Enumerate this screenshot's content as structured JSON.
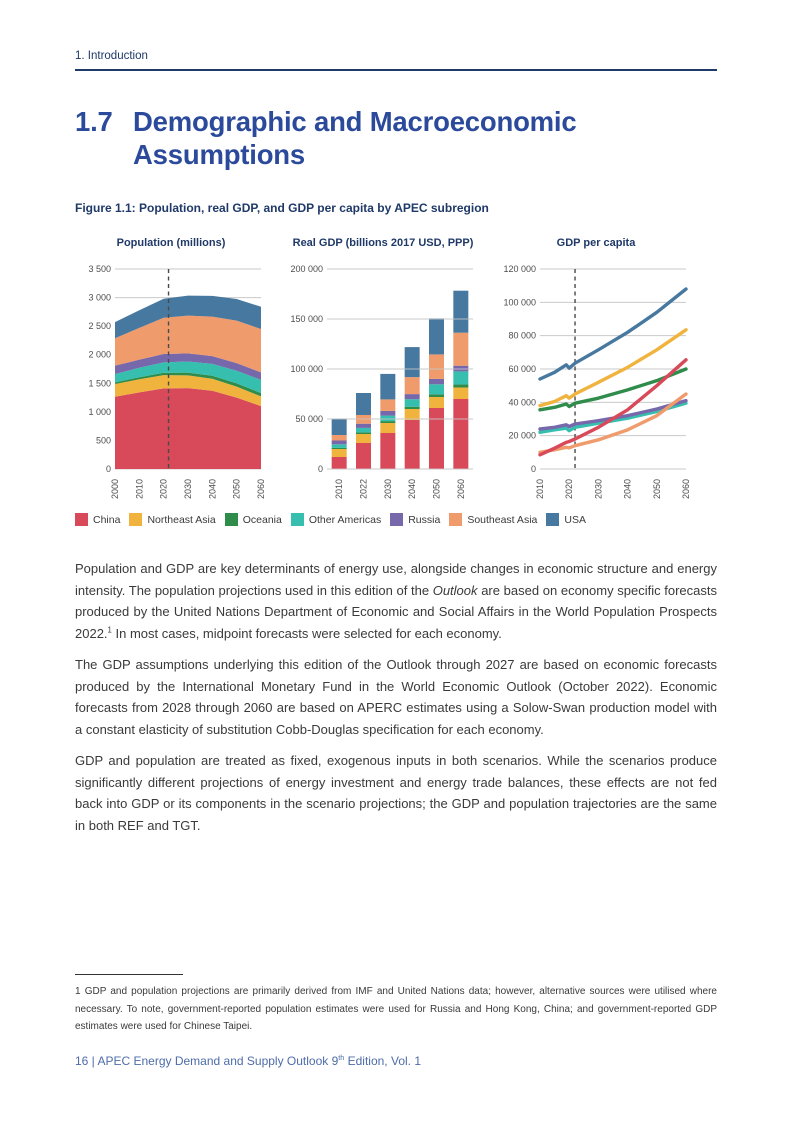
{
  "theme": {
    "navy": "#1F3968",
    "heading_blue": "#2B4A9B",
    "footer_blue": "#4D6CA9",
    "body_text": "#3A3A3A",
    "axis_text": "#4D4D4D",
    "grid_line": "#C9C9C9"
  },
  "header": "1. Introduction",
  "title": {
    "number": "1.7",
    "line1": "Demographic and Macroeconomic",
    "line2": "Assumptions"
  },
  "figure_caption": "Figure 1.1: Population, real GDP, and GDP per capita by APEC subregion",
  "legend": [
    {
      "label": "China",
      "color": "#D8495A"
    },
    {
      "label": "Northeast Asia",
      "color": "#F0B33E"
    },
    {
      "label": "Oceania",
      "color": "#2F8C4A"
    },
    {
      "label": "Other Americas",
      "color": "#36BFAE"
    },
    {
      "label": "Russia",
      "color": "#7767AB"
    },
    {
      "label": "Southeast Asia",
      "color": "#EF9B6B"
    },
    {
      "label": "USA",
      "color": "#47789F"
    }
  ],
  "chart_data": [
    {
      "type": "area",
      "title": "Population (millions)",
      "x": [
        2000,
        2010,
        2020,
        2030,
        2040,
        2050,
        2060
      ],
      "xticks": [
        2000,
        2010,
        2020,
        2030,
        2040,
        2050,
        2060
      ],
      "ylim": [
        0,
        3500
      ],
      "ytick_step": 500,
      "grid": true,
      "dashed_line_x": 2022,
      "series": [
        {
          "name": "China",
          "values": [
            1265,
            1340,
            1410,
            1415,
            1370,
            1250,
            1100
          ]
        },
        {
          "name": "Northeast Asia",
          "values": [
            222,
            230,
            232,
            224,
            210,
            192,
            170
          ]
        },
        {
          "name": "Oceania",
          "values": [
            30,
            36,
            42,
            47,
            52,
            57,
            60
          ]
        },
        {
          "name": "Other Americas",
          "values": [
            145,
            165,
            182,
            196,
            208,
            220,
            230
          ]
        },
        {
          "name": "Russia",
          "values": [
            146,
            143,
            146,
            141,
            136,
            133,
            130
          ]
        },
        {
          "name": "Southeast Asia",
          "values": [
            480,
            555,
            635,
            660,
            690,
            745,
            760
          ]
        },
        {
          "name": "USA",
          "values": [
            282,
            310,
            332,
            350,
            364,
            377,
            390
          ]
        }
      ]
    },
    {
      "type": "bar",
      "title": "Real GDP (billions 2017 USD, PPP)",
      "categories": [
        "2010",
        "2022",
        "2030",
        "2040",
        "2050",
        "2060"
      ],
      "ylim": [
        0,
        200000
      ],
      "ytick_step": 50000,
      "grid": true,
      "series": [
        {
          "name": "China",
          "values": [
            12000,
            26000,
            36000,
            49000,
            61000,
            70000
          ]
        },
        {
          "name": "Northeast Asia",
          "values": [
            8000,
            9000,
            10000,
            11000,
            11000,
            11500
          ]
        },
        {
          "name": "Oceania",
          "values": [
            1200,
            1600,
            1900,
            2300,
            2700,
            3100
          ]
        },
        {
          "name": "Other Americas",
          "values": [
            3500,
            4500,
            5500,
            7500,
            10000,
            13000
          ]
        },
        {
          "name": "Russia",
          "values": [
            3800,
            4200,
            4700,
            5100,
            5400,
            5700
          ]
        },
        {
          "name": "Southeast Asia",
          "values": [
            5500,
            8700,
            11500,
            17000,
            24500,
            33000
          ]
        },
        {
          "name": "USA",
          "values": [
            16500,
            22000,
            25500,
            30000,
            36000,
            42000
          ]
        }
      ]
    },
    {
      "type": "line",
      "title": "GDP per capita",
      "x": [
        2010,
        2015,
        2019,
        2020,
        2022,
        2030,
        2040,
        2050,
        2060
      ],
      "xticks": [
        2010,
        2020,
        2030,
        2040,
        2050,
        2060
      ],
      "ylim": [
        0,
        120000
      ],
      "ytick_step": 20000,
      "grid": true,
      "dashed_line_x": 2022,
      "series": [
        {
          "name": "Oceania",
          "values": [
            35500,
            37000,
            39000,
            37500,
            39500,
            42500,
            47500,
            53000,
            60000
          ]
        },
        {
          "name": "Northeast Asia",
          "values": [
            38000,
            40500,
            44000,
            42500,
            45000,
            52000,
            61000,
            71500,
            83500
          ]
        },
        {
          "name": "USA",
          "values": [
            54000,
            58000,
            62500,
            60500,
            63500,
            71500,
            82000,
            94000,
            108000
          ]
        },
        {
          "name": "Other Americas",
          "values": [
            22000,
            23500,
            24500,
            23000,
            25000,
            27500,
            30500,
            34500,
            39500
          ]
        },
        {
          "name": "Russia",
          "values": [
            24000,
            25000,
            26500,
            25500,
            27000,
            29000,
            32000,
            36000,
            41000
          ]
        },
        {
          "name": "Southeast Asia",
          "values": [
            10000,
            11500,
            13000,
            12700,
            14000,
            17500,
            23500,
            32000,
            45000
          ]
        },
        {
          "name": "China",
          "values": [
            8500,
            12500,
            16000,
            16500,
            18000,
            25000,
            35500,
            50000,
            65500
          ]
        }
      ]
    }
  ],
  "body": {
    "p1": {
      "s1": "Population and GDP are key determinants of energy use, alongside changes in economic structure and energy intensity. The population projections used in this edition of the ",
      "italic": "Outlook",
      "s2": " are based on economy specific forecasts produced by the United Nations Department of Economic and Social Affairs in the World Population Prospects 2022.",
      "sup": "1",
      "s3": " In most cases, midpoint forecasts were selected for each economy."
    },
    "p2": "The GDP assumptions underlying this edition of the Outlook through 2027 are based on economic forecasts produced by the International Monetary Fund in the World Economic Outlook (October 2022). Economic forecasts from 2028 through 2060 are based on APERC estimates using a Solow-Swan production model with a constant elasticity of substitution Cobb-Douglas specification for each economy.",
    "p3": "GDP and population are treated as fixed, exogenous inputs in both scenarios. While the scenarios produce significantly different projections of energy investment and energy trade balances, these effects are not fed back into GDP or its components in the scenario projections; the GDP and population trajectories are the same in both REF and TGT."
  },
  "footnote": "1 GDP and population projections are primarily derived from IMF and United Nations data; however, alternative sources were utilised where necessary. To note, government-reported population estimates were used for Russia and Hong Kong, China; and government-reported GDP estimates were used for Chinese Taipei.",
  "footer": {
    "s1": "16 | APEC Energy Demand and Supply Outlook 9",
    "sup": "th",
    "s2": " Edition, Vol. 1"
  }
}
